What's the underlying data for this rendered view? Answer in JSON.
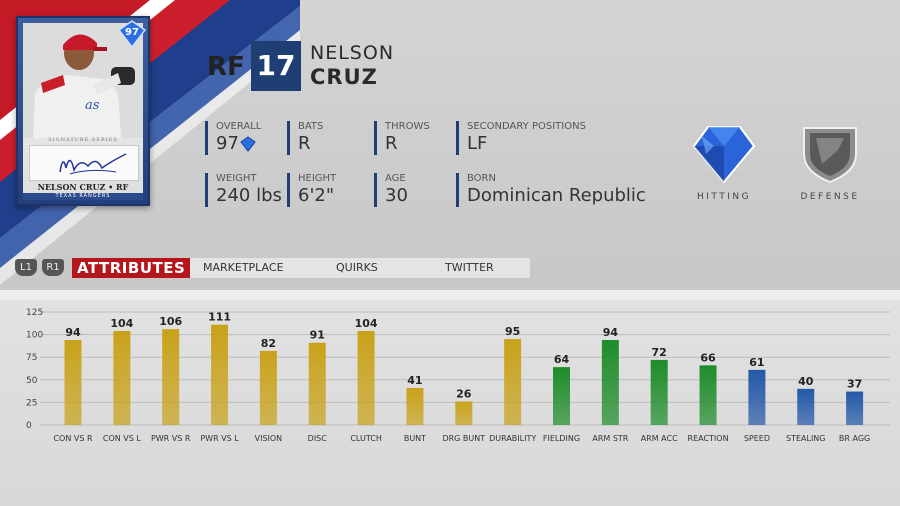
{
  "card": {
    "rating": "97",
    "series": "SIGNATURE SERIES",
    "name": "NELSON CRUZ • RF",
    "team": "TEXAS RANGERS"
  },
  "player": {
    "position": "RF",
    "number": "17",
    "first_name": "NELSON",
    "last_name": "CRUZ"
  },
  "info": {
    "overall": {
      "label": "OVERALL",
      "value": "97"
    },
    "bats": {
      "label": "BATS",
      "value": "R"
    },
    "throws": {
      "label": "THROWS",
      "value": "R"
    },
    "secondary": {
      "label": "SECONDARY POSITIONS",
      "value": "LF"
    },
    "weight": {
      "label": "WEIGHT",
      "value": "240 lbs"
    },
    "height": {
      "label": "HEIGHT",
      "value": "6'2\""
    },
    "age": {
      "label": "AGE",
      "value": "30"
    },
    "born": {
      "label": "BORN",
      "value": "Dominican Republic"
    }
  },
  "emblems": {
    "hitting": {
      "label": "HITTING",
      "icon": "diamond-icon",
      "color": "#2c6fe0"
    },
    "defense": {
      "label": "DEFENSE",
      "icon": "silver-shield-icon",
      "color": "#8c8c8c"
    }
  },
  "nav": {
    "l1": "L1",
    "r1": "R1",
    "tabs": [
      {
        "label": "ATTRIBUTES",
        "active": true
      },
      {
        "label": "MARKETPLACE",
        "active": false
      },
      {
        "label": "QUIRKS",
        "active": false
      },
      {
        "label": "TWITTER",
        "active": false
      }
    ]
  },
  "chart_data": {
    "type": "bar",
    "categories": [
      "CON VS R",
      "CON VS L",
      "PWR VS R",
      "PWR VS L",
      "VISION",
      "DISC",
      "CLUTCH",
      "BUNT",
      "DRG BUNT",
      "DURABILITY",
      "FIELDING",
      "ARM STR",
      "ARM ACC",
      "REACTION",
      "SPEED",
      "STEALING",
      "BR AGG"
    ],
    "values": [
      94,
      104,
      106,
      111,
      82,
      91,
      104,
      41,
      26,
      95,
      64,
      94,
      72,
      66,
      61,
      40,
      37
    ],
    "groups": [
      "hitting",
      "hitting",
      "hitting",
      "hitting",
      "hitting",
      "hitting",
      "hitting",
      "hitting",
      "hitting",
      "hitting",
      "defense",
      "defense",
      "defense",
      "defense",
      "running",
      "running",
      "running"
    ],
    "colors": {
      "hitting": "#c9a21a",
      "defense": "#1e8c2a",
      "running": "#2458a8"
    },
    "yticks": [
      0,
      25,
      50,
      75,
      100,
      125
    ],
    "ylim": [
      0,
      125
    ],
    "grid": true
  }
}
